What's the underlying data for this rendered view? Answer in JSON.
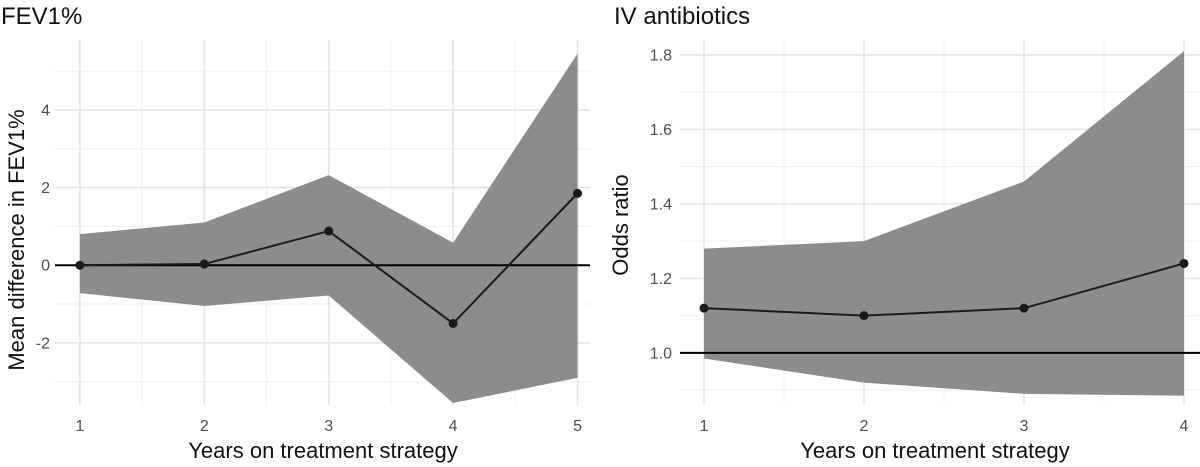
{
  "chart_data": [
    {
      "type": "line",
      "title": "FEV1%",
      "xlabel": "Years on treatment strategy",
      "ylabel": "Mean difference in FEV1%",
      "x": [
        1,
        2,
        3,
        4,
        5
      ],
      "xticks": [
        "1",
        "2",
        "3",
        "4",
        "5"
      ],
      "xlim": [
        0.8,
        5.1
      ],
      "ylim": [
        -3.6,
        5.8
      ],
      "yticks": [
        -2,
        0,
        2,
        4
      ],
      "ytick_labels": [
        "-2",
        "0",
        "2",
        "4"
      ],
      "reference_line": 0,
      "grid": true,
      "series": [
        {
          "values": [
            0.0,
            0.03,
            0.88,
            -1.5,
            1.85
          ],
          "ci_lower": [
            -0.72,
            -1.05,
            -0.78,
            -3.55,
            -2.9
          ],
          "ci_upper": [
            0.8,
            1.1,
            2.32,
            0.58,
            5.45
          ],
          "color": "#1a1a1a",
          "band_color": "#8c8c8c"
        }
      ]
    },
    {
      "type": "line",
      "title": "IV antibiotics",
      "xlabel": "Years on treatment strategy",
      "ylabel": "Odds ratio",
      "x": [
        1,
        2,
        3,
        4
      ],
      "xticks": [
        "1",
        "2",
        "3",
        "4"
      ],
      "xlim": [
        0.85,
        4.1
      ],
      "ylim": [
        0.86,
        1.84
      ],
      "yticks": [
        1.0,
        1.2,
        1.4,
        1.6,
        1.8
      ],
      "ytick_labels": [
        "1.0",
        "1.2",
        "1.4",
        "1.6",
        "1.8"
      ],
      "reference_line": 1.0,
      "grid": true,
      "series": [
        {
          "values": [
            1.12,
            1.1,
            1.12,
            1.24
          ],
          "ci_lower": [
            0.985,
            0.92,
            0.89,
            0.885
          ],
          "ci_upper": [
            1.28,
            1.3,
            1.46,
            1.81
          ],
          "color": "#1a1a1a",
          "band_color": "#8c8c8c"
        }
      ]
    }
  ]
}
